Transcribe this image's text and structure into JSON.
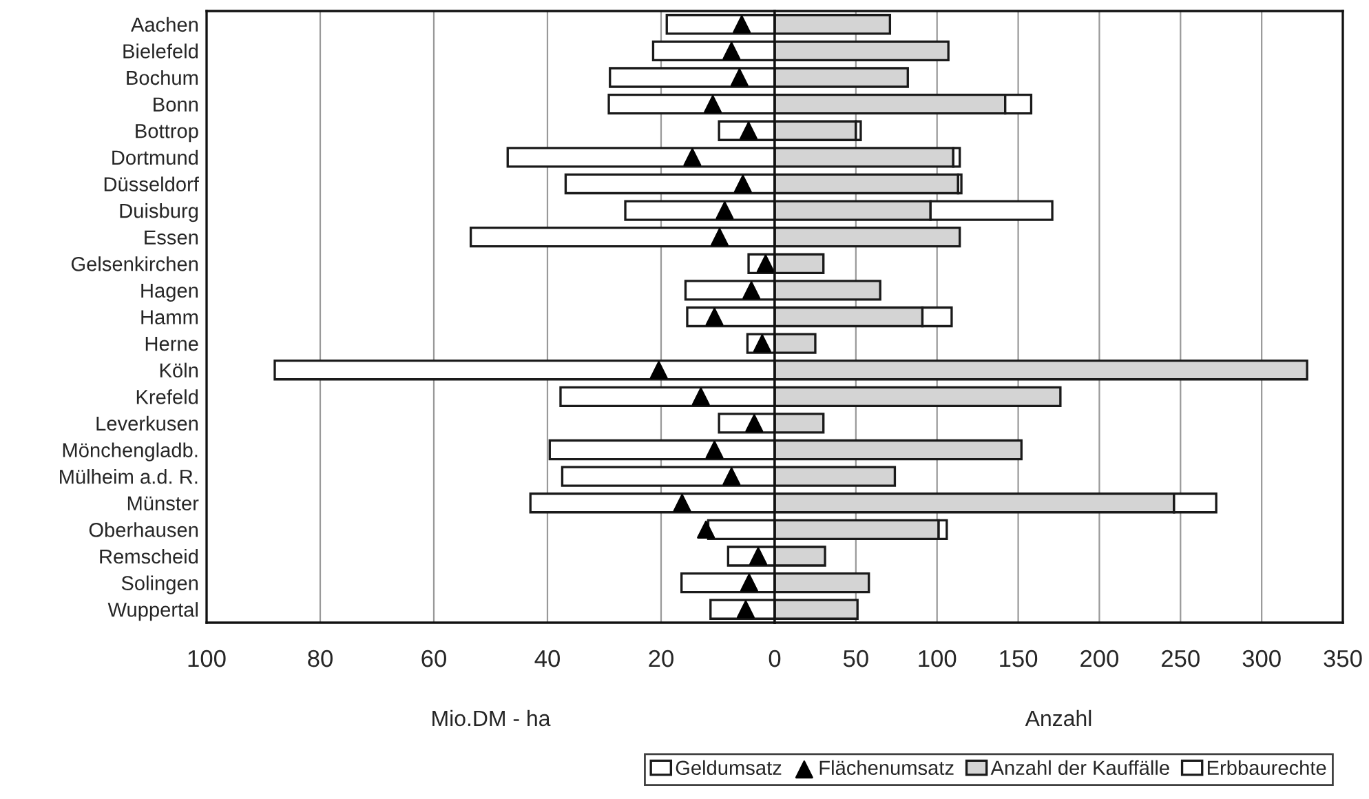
{
  "chart_data": [
    {
      "type": "bar",
      "orientation": "horizontal",
      "xlabel": "Mio.DM - ha",
      "categories": [
        "Aachen",
        "Bielefeld",
        "Bochum",
        "Bonn",
        "Bottrop",
        "Dortmund",
        "Düsseldorf",
        "Duisburg",
        "Essen",
        "Gelsenkirchen",
        "Hagen",
        "Hamm",
        "Herne",
        "Köln",
        "Krefeld",
        "Leverkusen",
        "Mönchengladb.",
        "Mülheim a.d. R.",
        "Münster",
        "Oberhausen",
        "Remscheid",
        "Solingen",
        "Wuppertal"
      ],
      "series": [
        {
          "name": "Geldumsatz",
          "color": "#ffffff",
          "values": [
            19,
            21.4,
            29,
            29.2,
            9.8,
            47,
            36.8,
            26.3,
            53.5,
            4.6,
            15.7,
            15.4,
            4.8,
            88,
            37.7,
            9.8,
            39.6,
            37.4,
            43,
            11.7,
            8.2,
            16.4,
            11.3
          ]
        },
        {
          "name": "Flächenumsatz",
          "type": "scatter",
          "color": "#000000",
          "marker": "triangle",
          "values": [
            5.8,
            7.6,
            6.2,
            10.9,
            4.6,
            14.5,
            5.6,
            8.8,
            9.7,
            1.6,
            4.1,
            10.6,
            2.2,
            20.4,
            13,
            3.6,
            10.6,
            7.6,
            16.3,
            12.1,
            2.9,
            4.5,
            5.1
          ]
        }
      ],
      "xlim": [
        100,
        0
      ],
      "xticks": [
        100,
        80,
        60,
        40,
        20,
        {
          "value": 0,
          "label": null
        }
      ],
      "grid": "x",
      "legend": "bottom right"
    },
    {
      "type": "bar",
      "orientation": "horizontal",
      "stacked": true,
      "xlabel": "Anzahl",
      "categories": [
        null,
        null,
        null,
        null,
        null,
        null,
        null,
        null,
        null,
        null,
        null,
        null,
        null,
        null,
        null,
        null,
        null,
        null,
        null,
        null,
        null,
        null,
        null
      ],
      "series": [
        {
          "name": "Anzahl der Kauffälle",
          "color": "#d4d4d4",
          "values": [
            71,
            107,
            82,
            142,
            50,
            110,
            113,
            96,
            114,
            30,
            65,
            91,
            25,
            328,
            176,
            30,
            152,
            74,
            246,
            101,
            31,
            58,
            51
          ]
        },
        {
          "name": "Erbbaurechte",
          "color": "#ffffff",
          "values": [
            null,
            null,
            null,
            16,
            3,
            4,
            2,
            75,
            null,
            null,
            null,
            18,
            null,
            null,
            null,
            null,
            null,
            null,
            26,
            5,
            null,
            null,
            null
          ]
        }
      ],
      "xlim": [
        0,
        350
      ],
      "xticks": [
        0,
        50,
        100,
        150,
        200,
        250,
        300,
        350
      ],
      "grid": "x",
      "tick_labels": "x",
      "legend": "bottom right"
    }
  ]
}
